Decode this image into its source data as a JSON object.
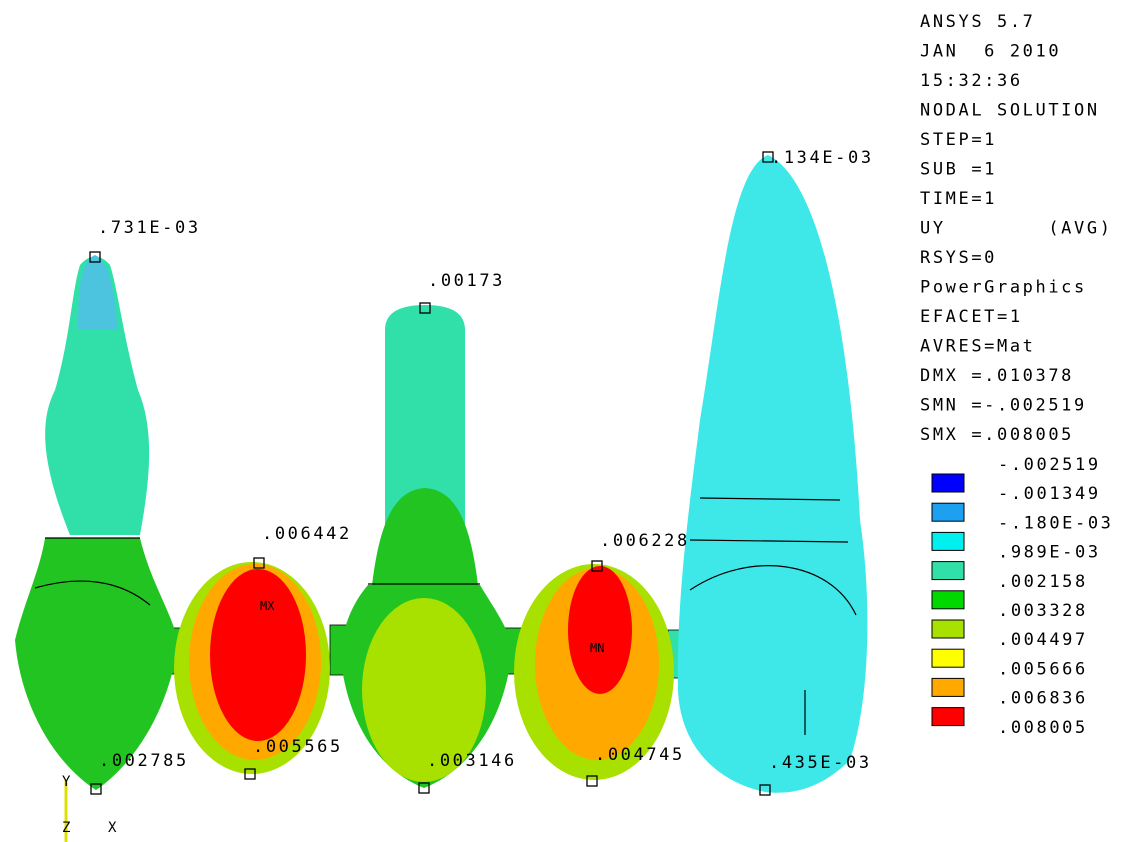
{
  "info": [
    "ANSYS 5.7",
    "JAN  6 2010",
    "15:32:36",
    "NODAL SOLUTION",
    "STEP=1",
    "SUB =1",
    "TIME=1",
    "UY        (AVG)",
    "RSYS=0",
    "PowerGraphics",
    "EFACET=1",
    "AVRES=Mat",
    "DMX =.010378",
    "SMN =-.002519",
    "SMX =.008005"
  ],
  "legend": {
    "levels": [
      "-.002519",
      "-.001349",
      "-.180E-03",
      ".989E-03",
      ".002158",
      ".003328",
      ".004497",
      ".005666",
      ".006836",
      ".008005"
    ],
    "colors": [
      "#0000ff",
      "#1ea0f0",
      "#00f0f0",
      "#30e0a8",
      "#00d800",
      "#a8e000",
      "#ffff00",
      "#ffa800",
      "#ff0000"
    ]
  },
  "node_labels": [
    ".731E-03",
    ".00173",
    ".134E-03",
    ".006442",
    ".006228",
    ".002785",
    ".005565",
    ".003146",
    ".004745",
    ".435E-03"
  ],
  "markers": [
    "MX",
    "MN"
  ],
  "triad": [
    "Y",
    "Z",
    "X"
  ]
}
